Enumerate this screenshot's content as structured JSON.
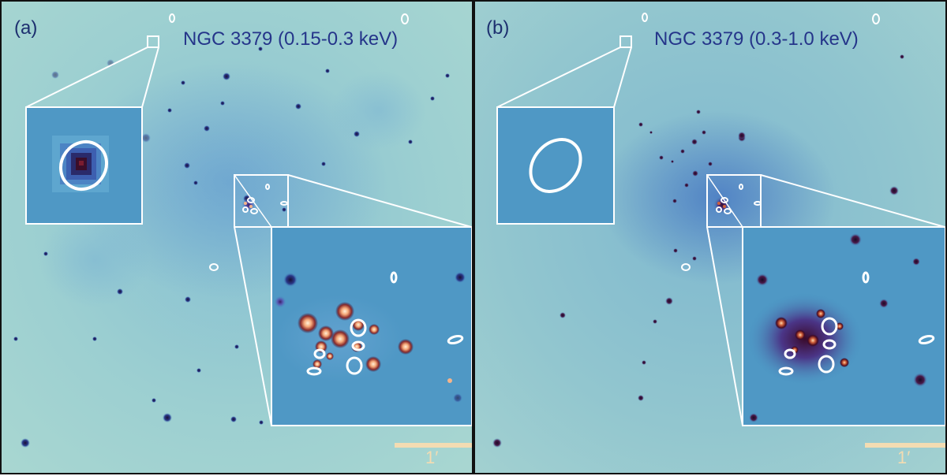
{
  "panels": [
    {
      "label": "(a)",
      "title": "NGC 3379 (0.15-0.3 keV)",
      "scale_label": "1′",
      "inset_small_has_source": true
    },
    {
      "label": "(b)",
      "title": "NGC 3379 (0.3-1.0 keV)",
      "scale_label": "1′",
      "inset_small_has_source": false
    }
  ],
  "colors": {
    "background_light": "#9fcfd0",
    "background_blue": "#4f98c5",
    "label_blue": "#25358a",
    "scale_bar": "#f3dcb2",
    "source_dark": "#1a0f35",
    "source_hot": "#f5b48a",
    "frame": "#ffffff"
  }
}
